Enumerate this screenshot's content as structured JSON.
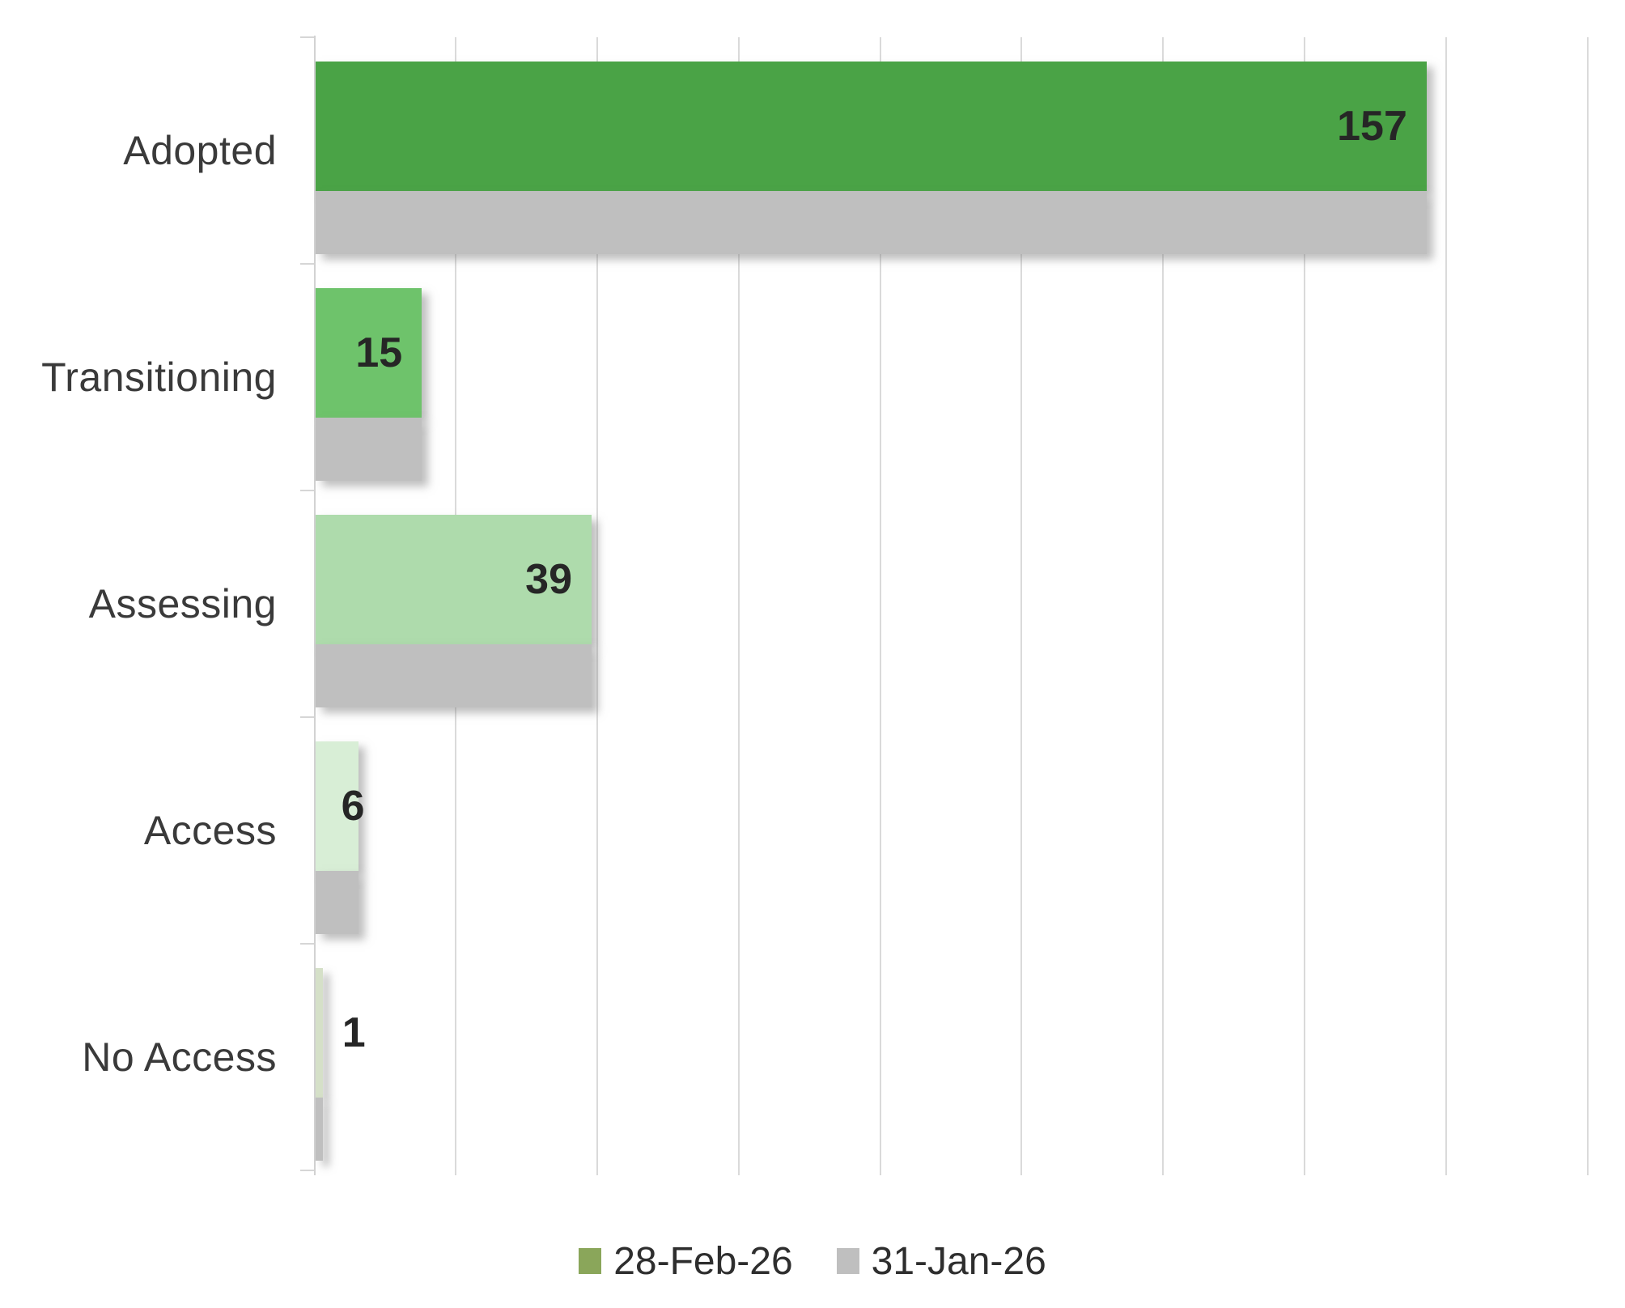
{
  "chart_data": {
    "type": "bar",
    "orientation": "horizontal",
    "title": "",
    "categories": [
      "Adopted",
      "Transitioning",
      "Assessing",
      "Access",
      "No Access"
    ],
    "series": [
      {
        "name": "28-Feb-26",
        "values": [
          157,
          15,
          39,
          6,
          1
        ],
        "bar_colors": [
          "#4AA346",
          "#6EC36B",
          "#AEDBAC",
          "#D8EED6",
          "#D5E0C8"
        ],
        "legend_color": "#8AA65A"
      },
      {
        "name": "31-Jan-26",
        "values": [
          157,
          15,
          39,
          6,
          1
        ],
        "color": "#BFBFBF"
      }
    ],
    "value_labels": [
      "157",
      "15",
      "39",
      "6",
      "1"
    ],
    "xlim": [
      0,
      180
    ],
    "gridline_step": 20,
    "grid": "vertical-only",
    "legend_position": "bottom"
  },
  "colors": {
    "background": "#FFFFFF",
    "gridline": "#DADADA",
    "axis_line": "#D2D2D2",
    "value_label": "#262626",
    "category_label": "#3A3A3A",
    "legend_text": "#2E2E2E"
  }
}
